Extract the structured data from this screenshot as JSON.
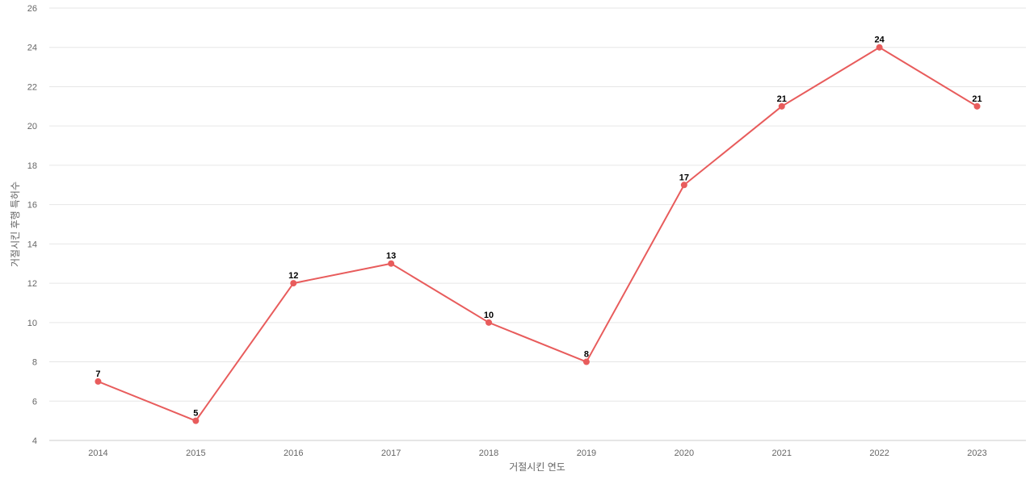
{
  "chart_data": {
    "type": "line",
    "title": "",
    "xlabel": "거절시킨 연도",
    "ylabel": "거절시킨 후행 특허수",
    "x": [
      "2014",
      "2015",
      "2016",
      "2017",
      "2018",
      "2019",
      "2020",
      "2021",
      "2022",
      "2023"
    ],
    "series": [
      {
        "values": [
          7,
          5,
          12,
          13,
          10,
          8,
          17,
          21,
          24,
          21
        ],
        "color": "#e85c5c"
      }
    ],
    "ylim": [
      4,
      26
    ],
    "yticks": [
      4,
      6,
      8,
      10,
      12,
      14,
      16,
      18,
      20,
      22,
      24,
      26
    ],
    "grid": true,
    "legend": "none",
    "data_labels": true,
    "colors": {
      "line": "#e85c5c",
      "grid": "#e6e6e6",
      "tick_text": "#666666"
    }
  }
}
